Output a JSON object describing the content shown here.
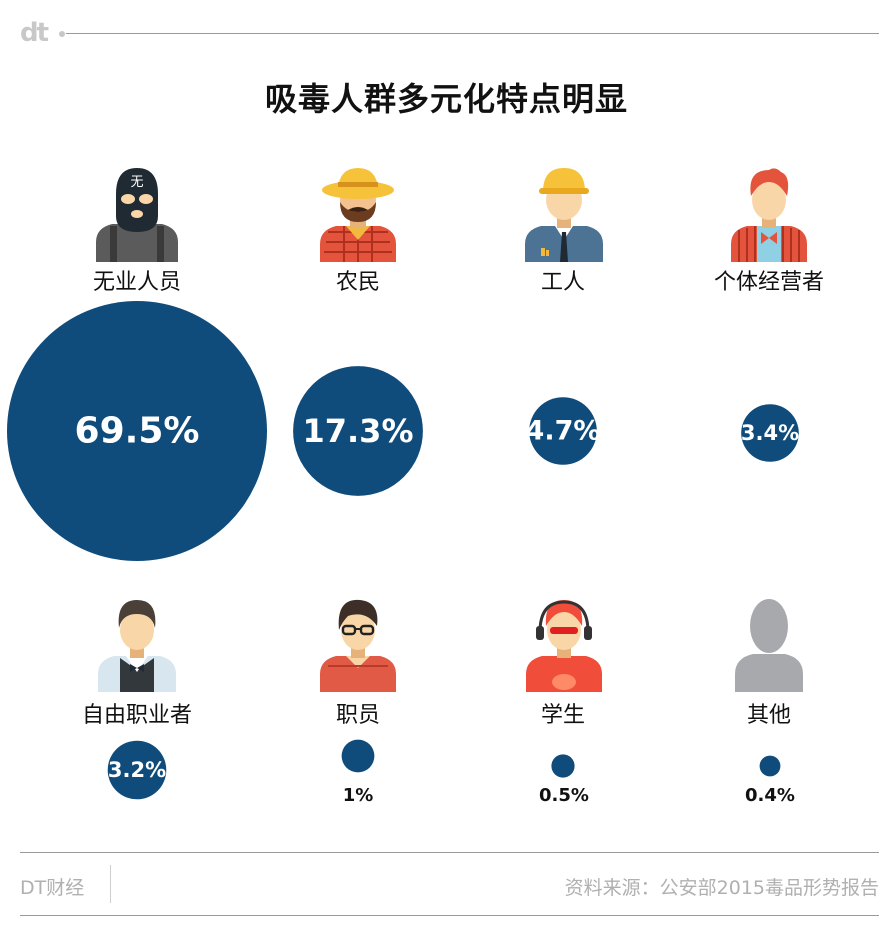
{
  "logo": "dt",
  "title": "吸毒人群多元化特点明显",
  "chart_data": {
    "type": "bubble",
    "title": "吸毒人群多元化特点明显",
    "unit": "%",
    "categories": [
      "无业人员",
      "农民",
      "工人",
      "个体经营者",
      "自由职业者",
      "职员",
      "学生",
      "其他"
    ],
    "values": [
      69.5,
      17.3,
      4.7,
      3.4,
      3.2,
      1,
      0.5,
      0.4
    ],
    "labels": [
      "69.5%",
      "17.3%",
      "4.7%",
      "3.4%",
      "3.2%",
      "1%",
      "0.5%",
      "0.4%"
    ],
    "bubble_color": "#0f4c7c"
  },
  "icons": {
    "unemployed_mark": "无",
    "names": [
      "masked-person-icon",
      "farmer-icon",
      "worker-icon",
      "merchant-icon",
      "freelancer-icon",
      "clerk-icon",
      "student-icon",
      "other-person-icon"
    ]
  },
  "footer": {
    "brand": "DT财经",
    "source": "资料来源：公安部2015毒品形势报告"
  }
}
